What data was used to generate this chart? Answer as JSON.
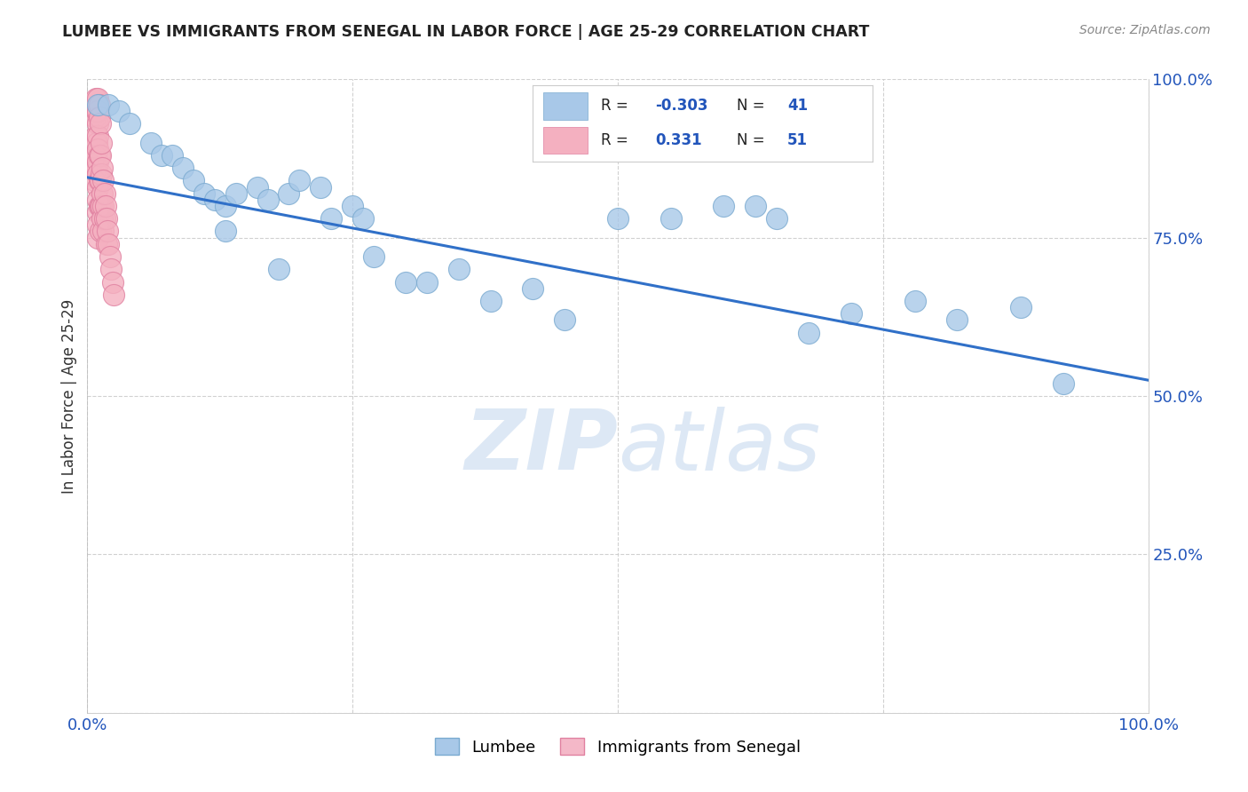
{
  "title": "LUMBEE VS IMMIGRANTS FROM SENEGAL IN LABOR FORCE | AGE 25-29 CORRELATION CHART",
  "source": "Source: ZipAtlas.com",
  "ylabel": "In Labor Force | Age 25-29",
  "xlim": [
    0.0,
    1.0
  ],
  "ylim": [
    0.0,
    1.0
  ],
  "xtick_positions": [
    0.0,
    0.25,
    0.5,
    0.75,
    1.0
  ],
  "ytick_positions": [
    0.0,
    0.25,
    0.5,
    0.75,
    1.0
  ],
  "xtick_labels": [
    "0.0%",
    "",
    "",
    "",
    "100.0%"
  ],
  "ytick_labels": [
    "",
    "25.0%",
    "50.0%",
    "75.0%",
    "100.0%"
  ],
  "legend_bottom": [
    "Lumbee",
    "Immigrants from Senegal"
  ],
  "legend_bottom_colors": [
    "#a8c8e8",
    "#f4b8c8"
  ],
  "lumbee_color": "#a8c8e8",
  "senegal_color": "#f4b0c0",
  "lumbee_edge": "#7aaad0",
  "senegal_edge": "#e080a0",
  "trendline_color": "#3070c8",
  "R_lumbee": -0.303,
  "N_lumbee": 41,
  "R_senegal": 0.331,
  "N_senegal": 51,
  "legend_box_color_lumbee": "#a8c8e8",
  "legend_box_color_senegal": "#f4b0c0",
  "trendline_x0": 0.0,
  "trendline_y0": 0.845,
  "trendline_x1": 1.0,
  "trendline_y1": 0.525,
  "lumbee_x": [
    0.01,
    0.02,
    0.03,
    0.04,
    0.06,
    0.07,
    0.08,
    0.09,
    0.1,
    0.11,
    0.12,
    0.13,
    0.14,
    0.16,
    0.17,
    0.19,
    0.2,
    0.22,
    0.23,
    0.25,
    0.26,
    0.27,
    0.3,
    0.32,
    0.35,
    0.38,
    0.42,
    0.45,
    0.5,
    0.55,
    0.6,
    0.63,
    0.65,
    0.68,
    0.72,
    0.78,
    0.82,
    0.88,
    0.92,
    0.13,
    0.18
  ],
  "lumbee_y": [
    0.96,
    0.96,
    0.95,
    0.93,
    0.9,
    0.88,
    0.88,
    0.86,
    0.84,
    0.82,
    0.81,
    0.8,
    0.82,
    0.83,
    0.81,
    0.82,
    0.84,
    0.83,
    0.78,
    0.8,
    0.78,
    0.72,
    0.68,
    0.68,
    0.7,
    0.65,
    0.67,
    0.62,
    0.78,
    0.78,
    0.8,
    0.8,
    0.78,
    0.6,
    0.63,
    0.65,
    0.62,
    0.64,
    0.52,
    0.76,
    0.7
  ],
  "senegal_x": [
    0.005,
    0.006,
    0.007,
    0.007,
    0.008,
    0.008,
    0.009,
    0.009,
    0.009,
    0.01,
    0.01,
    0.01,
    0.01,
    0.01,
    0.01,
    0.01,
    0.01,
    0.01,
    0.01,
    0.01,
    0.01,
    0.011,
    0.011,
    0.011,
    0.011,
    0.011,
    0.012,
    0.012,
    0.012,
    0.012,
    0.012,
    0.013,
    0.013,
    0.013,
    0.014,
    0.014,
    0.014,
    0.015,
    0.015,
    0.015,
    0.016,
    0.016,
    0.017,
    0.018,
    0.018,
    0.019,
    0.02,
    0.021,
    0.022,
    0.024,
    0.025
  ],
  "senegal_y": [
    0.87,
    0.84,
    0.94,
    0.88,
    0.97,
    0.91,
    0.95,
    0.9,
    0.86,
    0.97,
    0.95,
    0.93,
    0.91,
    0.89,
    0.87,
    0.85,
    0.83,
    0.81,
    0.79,
    0.77,
    0.75,
    0.96,
    0.94,
    0.88,
    0.84,
    0.8,
    0.93,
    0.88,
    0.84,
    0.8,
    0.76,
    0.9,
    0.85,
    0.8,
    0.86,
    0.82,
    0.78,
    0.84,
    0.8,
    0.76,
    0.82,
    0.78,
    0.8,
    0.78,
    0.74,
    0.76,
    0.74,
    0.72,
    0.7,
    0.68,
    0.66
  ]
}
